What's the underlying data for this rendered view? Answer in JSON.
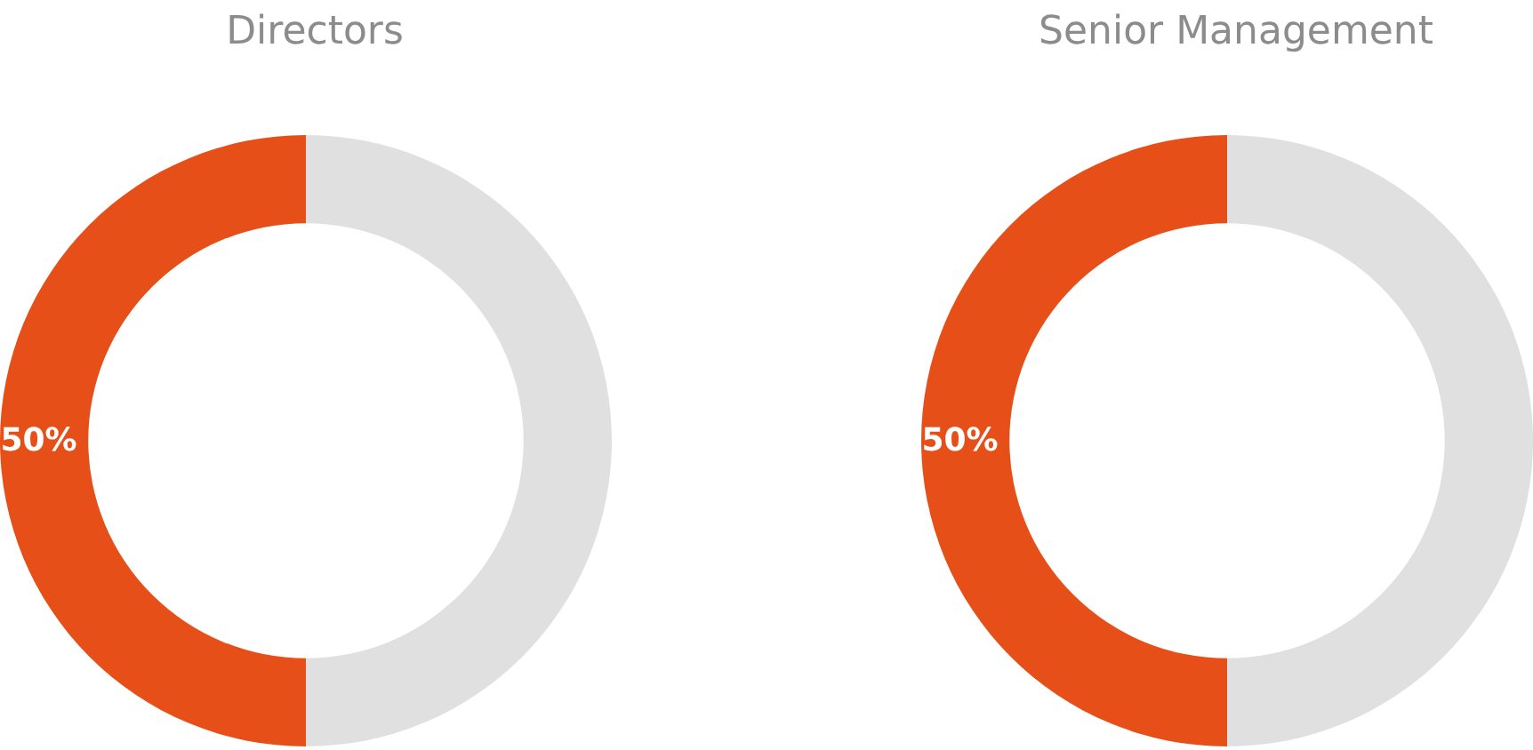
{
  "chart_data": [
    {
      "type": "donut",
      "title": "Directors",
      "categories": [
        null,
        null
      ],
      "values": [
        50,
        50
      ],
      "colors": [
        "#e64f17",
        "#e0e0e0"
      ],
      "value_labels": [
        "50%",
        null
      ]
    },
    {
      "type": "donut",
      "title": "Senior Management",
      "categories": [
        null,
        null
      ],
      "values": [
        50,
        50
      ],
      "colors": [
        "#e64f17",
        "#e0e0e0"
      ],
      "value_labels": [
        "50%",
        null
      ]
    }
  ]
}
